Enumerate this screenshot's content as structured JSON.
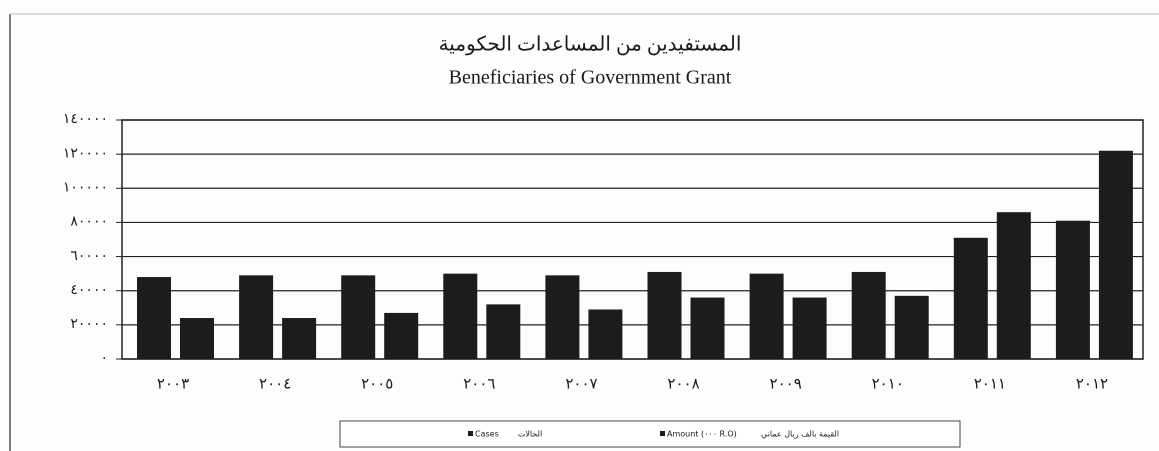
{
  "chart_data": {
    "type": "bar",
    "title_ar": "المستفيدين من المساعدات الحكومية",
    "title": "Beneficiaries of Government Grant",
    "categories": [
      "٢٠٠٣",
      "٢٠٠٤",
      "٢٠٠٥",
      "٢٠٠٦",
      "٢٠٠٧",
      "٢٠٠٨",
      "٢٠٠٩",
      "٢٠١٠",
      "٢٠١١",
      "٢٠١٢"
    ],
    "series": [
      {
        "name": "Cases",
        "name_ar": "الحالات",
        "color": "#1c1c1c",
        "values": [
          48000,
          49000,
          49000,
          50000,
          49000,
          51000,
          50000,
          51000,
          71000,
          81000
        ]
      },
      {
        "name": "Amount (٠٠٠ R.O)",
        "name_ar": "القيمة بالف ريال عماني",
        "color": "#1c1c1c",
        "values": [
          24000,
          24000,
          27000,
          32000,
          29000,
          36000,
          36000,
          37000,
          86000,
          122000
        ]
      }
    ],
    "ylim": [
      0,
      140000
    ],
    "yticks": [
      {
        "value": 0,
        "label": "٠"
      },
      {
        "value": 20000,
        "label": "٢٠٠٠٠"
      },
      {
        "value": 40000,
        "label": "٤٠٠٠٠"
      },
      {
        "value": 60000,
        "label": "٦٠٠٠٠"
      },
      {
        "value": 80000,
        "label": "٨٠٠٠٠"
      },
      {
        "value": 100000,
        "label": "١٠٠٠٠٠"
      },
      {
        "value": 120000,
        "label": "١٢٠٠٠٠"
      },
      {
        "value": 140000,
        "label": "١٤٠٠٠٠"
      }
    ],
    "grid": true,
    "legend": "bottom"
  }
}
